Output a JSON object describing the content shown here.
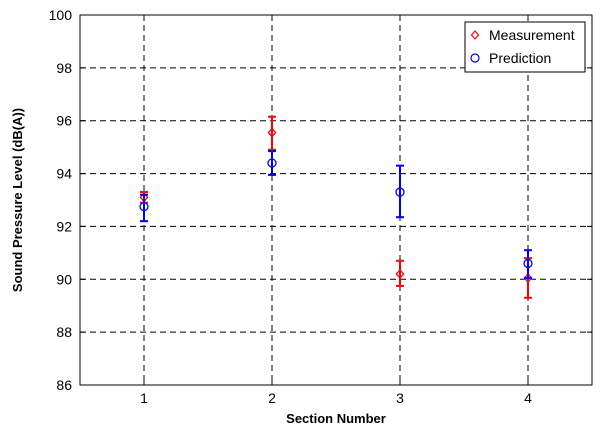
{
  "chart_data": {
    "type": "scatter",
    "xlabel": "Section Number",
    "ylabel": "Sound Pressure Level (dB(A))",
    "xlim": [
      0.5,
      4.5
    ],
    "ylim": [
      86,
      100
    ],
    "xticks": [
      1,
      2,
      3,
      4
    ],
    "yticks": [
      86,
      88,
      90,
      92,
      94,
      96,
      98,
      100
    ],
    "grid": true,
    "legend_position": "top-right",
    "series": [
      {
        "name": "Measurement",
        "marker": "diamond",
        "color": "#ff0000",
        "x": [
          1,
          2,
          3,
          4
        ],
        "y": [
          93.1,
          95.55,
          90.2,
          90.05
        ],
        "err_low": [
          92.9,
          94.9,
          89.75,
          89.3
        ],
        "err_high": [
          93.3,
          96.15,
          90.7,
          90.8
        ]
      },
      {
        "name": "Prediction",
        "marker": "circle",
        "color": "#0000ff",
        "x": [
          1,
          2,
          3,
          4
        ],
        "y": [
          92.75,
          94.4,
          93.3,
          90.6
        ],
        "err_low": [
          92.2,
          93.95,
          92.35,
          90.05
        ],
        "err_high": [
          93.2,
          94.85,
          94.3,
          91.1
        ]
      }
    ]
  }
}
